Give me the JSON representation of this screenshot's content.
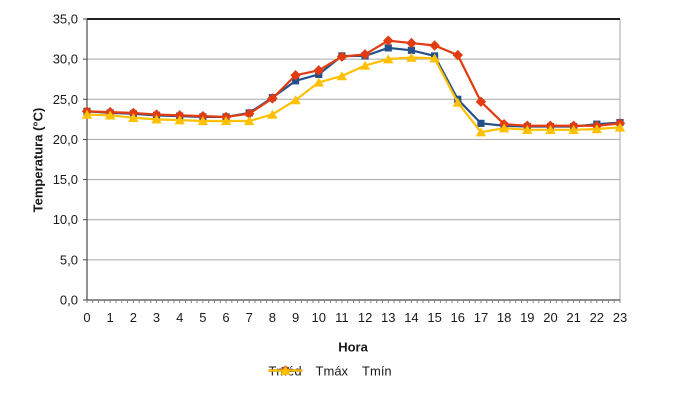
{
  "chart_data": {
    "type": "line",
    "title": "",
    "xlabel": "Hora",
    "ylabel": "Temperatura (°C)",
    "x": [
      0,
      1,
      2,
      3,
      4,
      5,
      6,
      7,
      8,
      9,
      10,
      11,
      12,
      13,
      14,
      15,
      16,
      17,
      18,
      19,
      20,
      21,
      22,
      23
    ],
    "xtick_labels": [
      "0",
      "1",
      "2",
      "3",
      "4",
      "5",
      "6",
      "7",
      "8",
      "9",
      "10",
      "11",
      "12",
      "13",
      "14",
      "15",
      "16",
      "17",
      "18",
      "19",
      "20",
      "21",
      "22",
      "23"
    ],
    "ylim": [
      0,
      35
    ],
    "ytick_step": 5,
    "ytick_labels": [
      "0,0",
      "5,0",
      "10,0",
      "15,0",
      "20,0",
      "25,0",
      "30,0",
      "35,0"
    ],
    "grid": true,
    "legend_position": "bottom-center",
    "series": [
      {
        "id": "tmed",
        "name": "Tméd",
        "marker": "square",
        "color": "#24518B",
        "values": [
          23.5,
          23.3,
          23.2,
          23.0,
          22.9,
          22.8,
          22.8,
          23.3,
          25.2,
          27.3,
          28.1,
          30.4,
          30.4,
          31.4,
          31.1,
          30.4,
          25.0,
          22.0,
          21.7,
          21.6,
          21.6,
          21.6,
          21.9,
          22.1
        ]
      },
      {
        "id": "tmax",
        "name": "Tmáx",
        "marker": "diamond",
        "color": "#E23B10",
        "values": [
          23.5,
          23.4,
          23.3,
          23.1,
          23.0,
          22.9,
          22.8,
          23.2,
          25.1,
          28.0,
          28.6,
          30.3,
          30.6,
          32.3,
          32.0,
          31.7,
          30.5,
          24.7,
          21.9,
          21.7,
          21.7,
          21.7,
          21.7,
          22.0
        ]
      },
      {
        "id": "tmin",
        "name": "Tmín",
        "marker": "triangle",
        "color": "#FFC000",
        "values": [
          23.1,
          23.0,
          22.7,
          22.5,
          22.4,
          22.3,
          22.3,
          22.3,
          23.1,
          24.9,
          27.1,
          27.9,
          29.2,
          30.0,
          30.2,
          30.1,
          24.6,
          20.9,
          21.4,
          21.2,
          21.2,
          21.2,
          21.3,
          21.5
        ]
      }
    ],
    "colors": {
      "gridline": "#A6A6A6",
      "right_border": "#A6A6A6",
      "top_border": "#000000",
      "axis": "#4A4A4A",
      "tick": "#7F7F7F",
      "text": "#1A1A1A",
      "background": "#FFFFFF"
    }
  }
}
